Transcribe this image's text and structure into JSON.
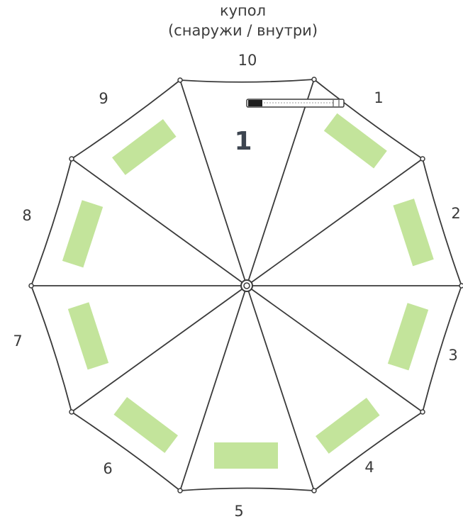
{
  "title": {
    "line1": "купол",
    "line2": "(снаружи / внутри)"
  },
  "center_label": "1",
  "segments": [
    {
      "id": "1",
      "label": "1"
    },
    {
      "id": "2",
      "label": "2"
    },
    {
      "id": "3",
      "label": "3"
    },
    {
      "id": "4",
      "label": "4"
    },
    {
      "id": "5",
      "label": "5"
    },
    {
      "id": "6",
      "label": "6"
    },
    {
      "id": "7",
      "label": "7"
    },
    {
      "id": "8",
      "label": "8"
    },
    {
      "id": "9",
      "label": "9"
    },
    {
      "id": "10",
      "label": "10"
    }
  ],
  "colors": {
    "panel_fill": "#c3e49b",
    "outline": "#3a3a3a",
    "label": "#3a3a3a",
    "center_number": "#3d4550"
  }
}
